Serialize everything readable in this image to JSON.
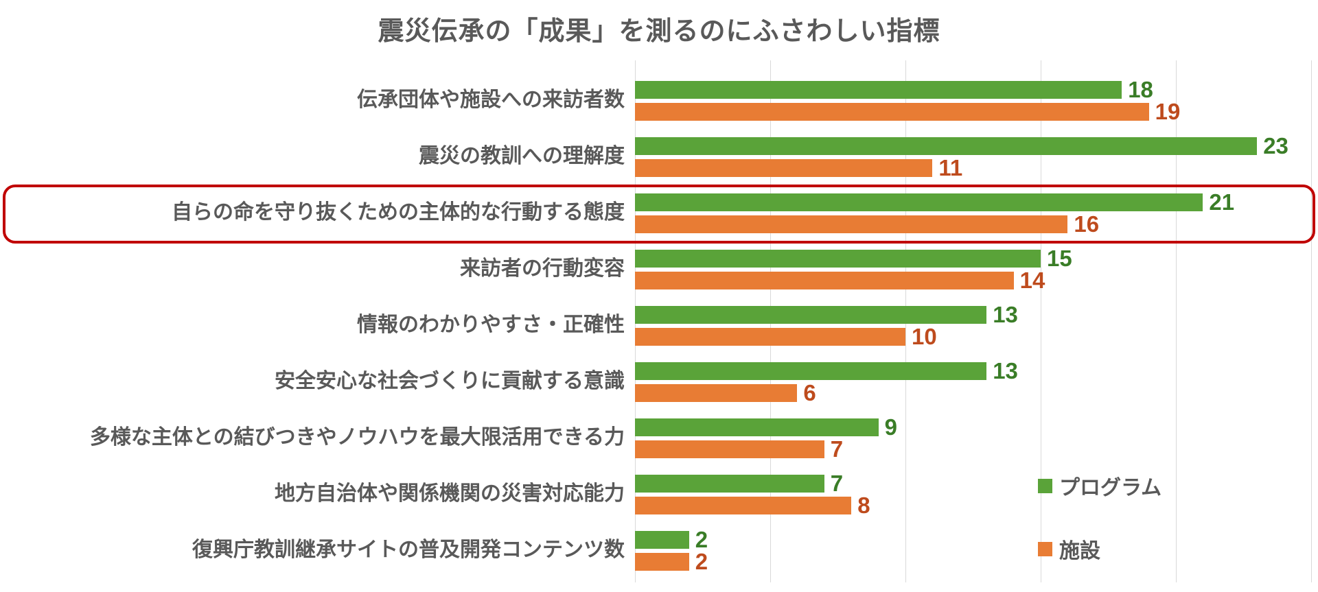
{
  "title": "震災伝承の「成果」を測るのにふさわしい指標",
  "chart_data": {
    "type": "bar",
    "orientation": "horizontal",
    "title": "震災伝承の「成果」を測るのにふさわしい指標",
    "categories": [
      "伝承団体や施設への来訪者数",
      "震災の教訓への理解度",
      "自らの命を守り抜くための主体的な行動する態度",
      "来訪者の行動変容",
      "情報のわかりやすさ・正確性",
      "安全安心な社会づくりに貢献する意識",
      "多様な主体との結びつきやノウハウを最大限活用できる力",
      "地方自治体や関係機関の災害対応能力",
      "復興庁教訓継承サイトの普及開発コンテンツ数"
    ],
    "series": [
      {
        "name": "プログラム",
        "values": [
          18,
          23,
          21,
          15,
          13,
          13,
          9,
          7,
          2
        ],
        "bar_color": "#5aa339",
        "value_label_color": "#3a7d27"
      },
      {
        "name": "施設",
        "values": [
          19,
          11,
          16,
          14,
          10,
          6,
          7,
          8,
          2
        ],
        "bar_color": "#e87c34",
        "value_label_color": "#be4b1d"
      }
    ],
    "xlim": [
      0,
      25
    ],
    "gridline_step": 5,
    "grid": true,
    "gridline_color": "#d9d9d9",
    "value_labels": true,
    "legend_position": "right-middle",
    "highlight": {
      "category_index": 2,
      "category": "自らの命を守り抜くための主体的な行動する態度",
      "shape": "rounded-rectangle",
      "border_color": "#c00000"
    }
  },
  "text_color": "#595959",
  "background_color": "#ffffff"
}
